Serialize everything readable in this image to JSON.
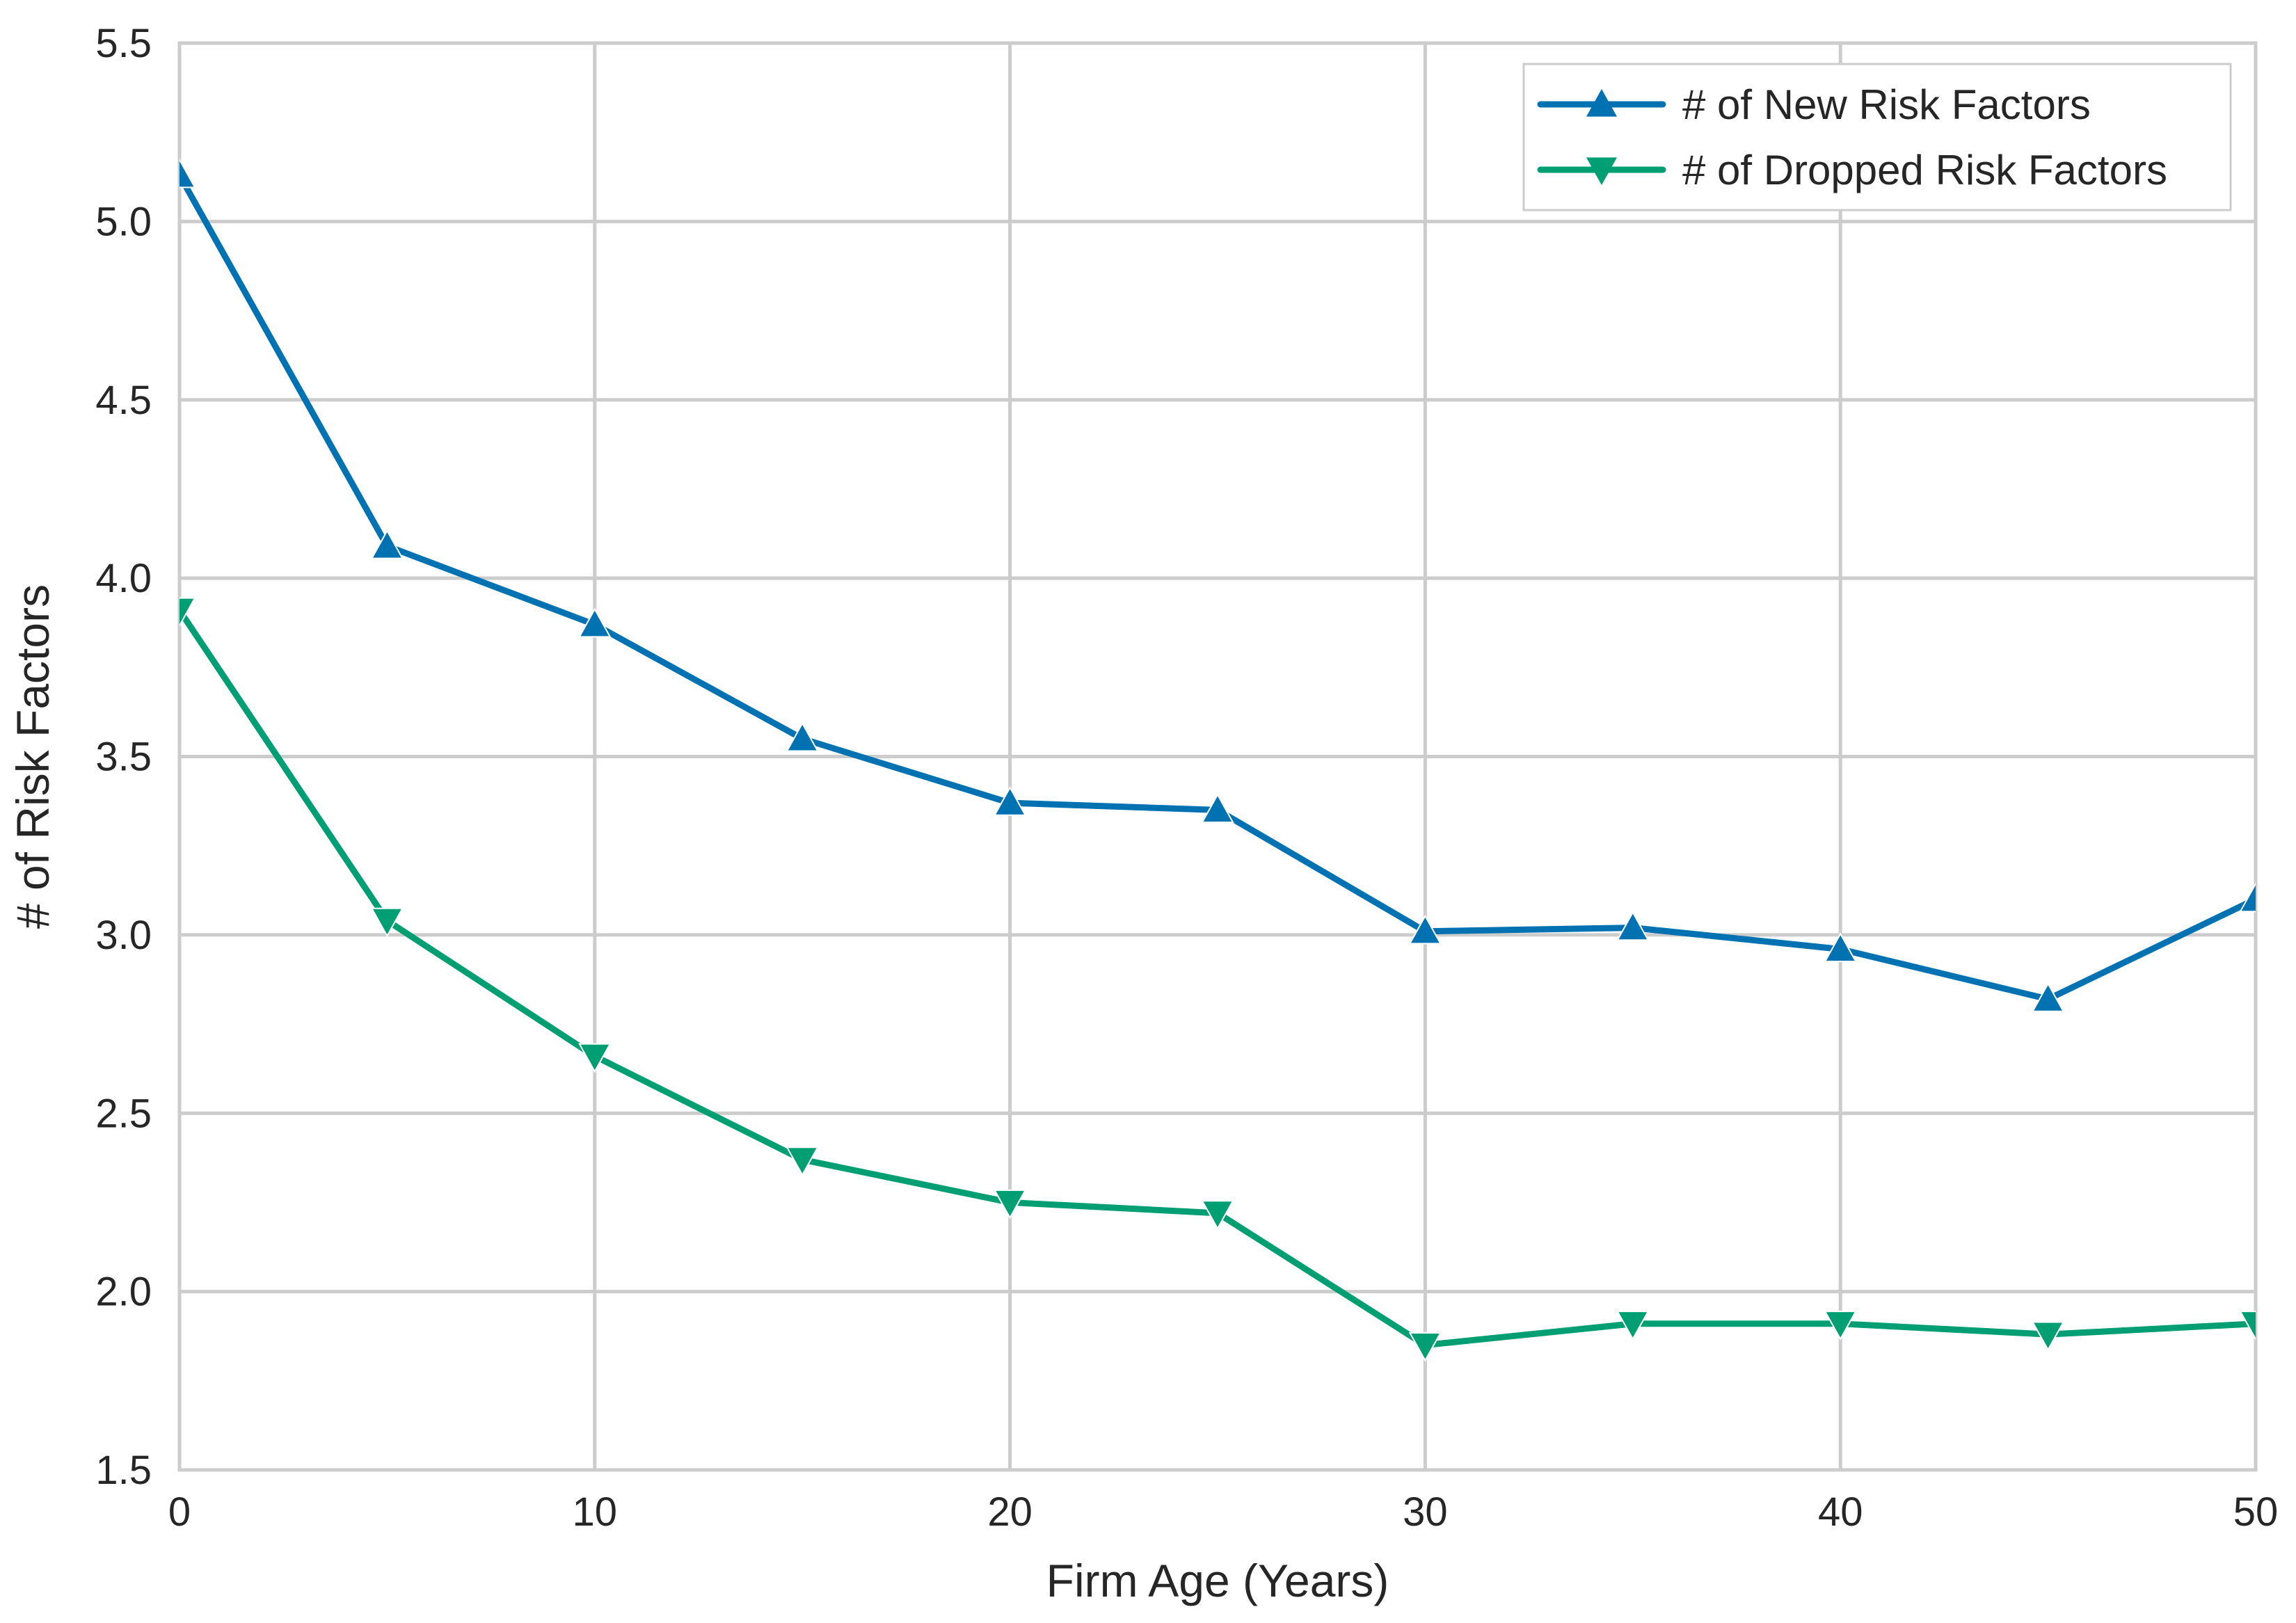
{
  "chart_data": {
    "type": "line",
    "title": "",
    "xlabel": "Firm Age (Years)",
    "ylabel": "# of Risk Factors",
    "xlim": [
      0,
      50
    ],
    "ylim": [
      1.5,
      5.5
    ],
    "xticks": [
      0,
      10,
      20,
      30,
      40,
      50
    ],
    "xtick_labels": [
      "0",
      "10",
      "20",
      "30",
      "40",
      "50"
    ],
    "yticks": [
      1.5,
      2.0,
      2.5,
      3.0,
      3.5,
      4.0,
      4.5,
      5.0,
      5.5
    ],
    "ytick_labels": [
      "1.5",
      "2.0",
      "2.5",
      "3.0",
      "3.5",
      "4.0",
      "4.5",
      "5.0",
      "5.5"
    ],
    "grid": true,
    "legend_position": "top-right",
    "x": [
      0,
      5,
      10,
      15,
      20,
      25,
      30,
      35,
      40,
      45,
      50
    ],
    "series": [
      {
        "name": "# of New Risk Factors",
        "marker": "triangle-up",
        "color": "#0072b2",
        "values": [
          5.13,
          4.09,
          3.87,
          3.55,
          3.37,
          3.35,
          3.01,
          3.02,
          2.96,
          2.82,
          3.1
        ]
      },
      {
        "name": "# of Dropped Risk Factors",
        "marker": "triangle-down",
        "color": "#009e73",
        "values": [
          3.91,
          3.04,
          2.66,
          2.37,
          2.25,
          2.22,
          1.85,
          1.91,
          1.91,
          1.88,
          1.91
        ]
      }
    ]
  }
}
